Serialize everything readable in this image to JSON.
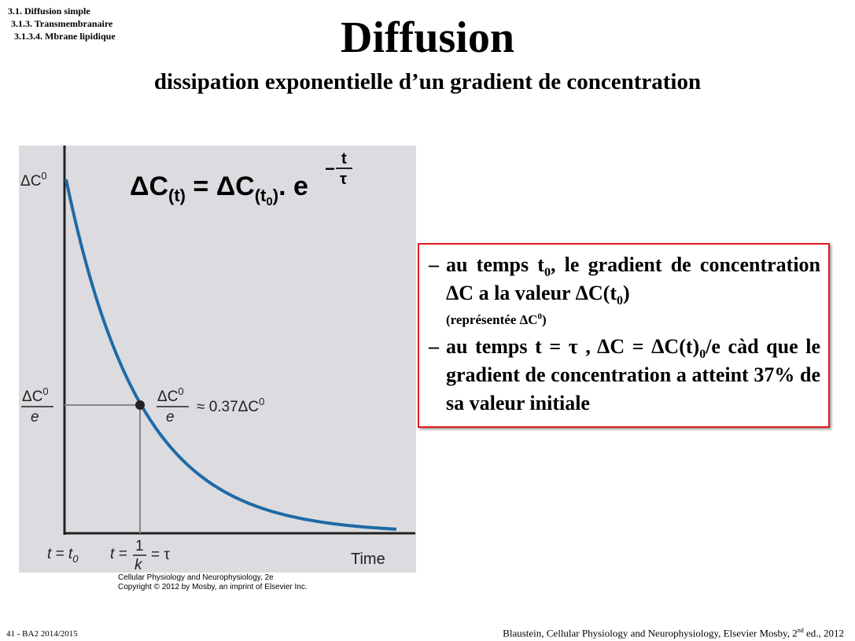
{
  "breadcrumb": [
    "3.1. Diffusion simple",
    "3.1.3. Transmembranaire",
    "3.1.3.4. Mbrane lipidique"
  ],
  "title": "Diffusion",
  "subtitle": "dissipation exponentielle d’un gradient de concentration",
  "figure": {
    "formula": {
      "lhs": "ΔC",
      "lhs_sub": "(t)",
      "mid": " = ΔC",
      "mid_sub": "(t",
      "mid_sub_sub": "0",
      "mid_sub_close": ")",
      "tail": ". e",
      "exp_sign": "−",
      "exp_num": "t",
      "exp_den": "τ"
    },
    "y_max_label": {
      "base": "ΔC",
      "sup": "0"
    },
    "y_mid_label": {
      "num_base": "ΔC",
      "num_sup": "0",
      "den": "e"
    },
    "point_label": {
      "num_base": "ΔC",
      "num_sup": "0",
      "den": "e",
      "approx": "≈ 0.37ΔC",
      "approx_sup": "0"
    },
    "x_label_start": {
      "base": "t = t",
      "sub": "0"
    },
    "x_label_tau": {
      "pre": "t =",
      "num": "1",
      "den": "k",
      "post": "= τ"
    },
    "x_axis_title": "Time",
    "caption": [
      "Cellular Physiology and Neurophysiology, 2e",
      "Copyright © 2012 by Mosby, an imprint of Elsevier Inc."
    ]
  },
  "box": {
    "bullets": [
      [
        "au temps t",
        {
          "sub": "0"
        },
        ", le gradient de concentration ΔC a la valeur ΔC(t",
        {
          "sub": "0"
        },
        ")",
        {
          "small": [
            "(représentée ΔC",
            {
              "sup": "0"
            },
            ")"
          ]
        }
      ],
      [
        "au temps t = τ , ΔC = ΔC(t)",
        {
          "sub": "0"
        },
        "/e càd que le gradient de concentration a atteint 37% de sa valeur initiale"
      ]
    ]
  },
  "footer": {
    "page": "41 - BA2 2014/2015",
    "reference": [
      "Blaustein, Cellular Physiology and Neurophysiology, Elsevier Mosby, 2",
      {
        "sup": "nd"
      },
      " ed., 2012"
    ]
  }
}
